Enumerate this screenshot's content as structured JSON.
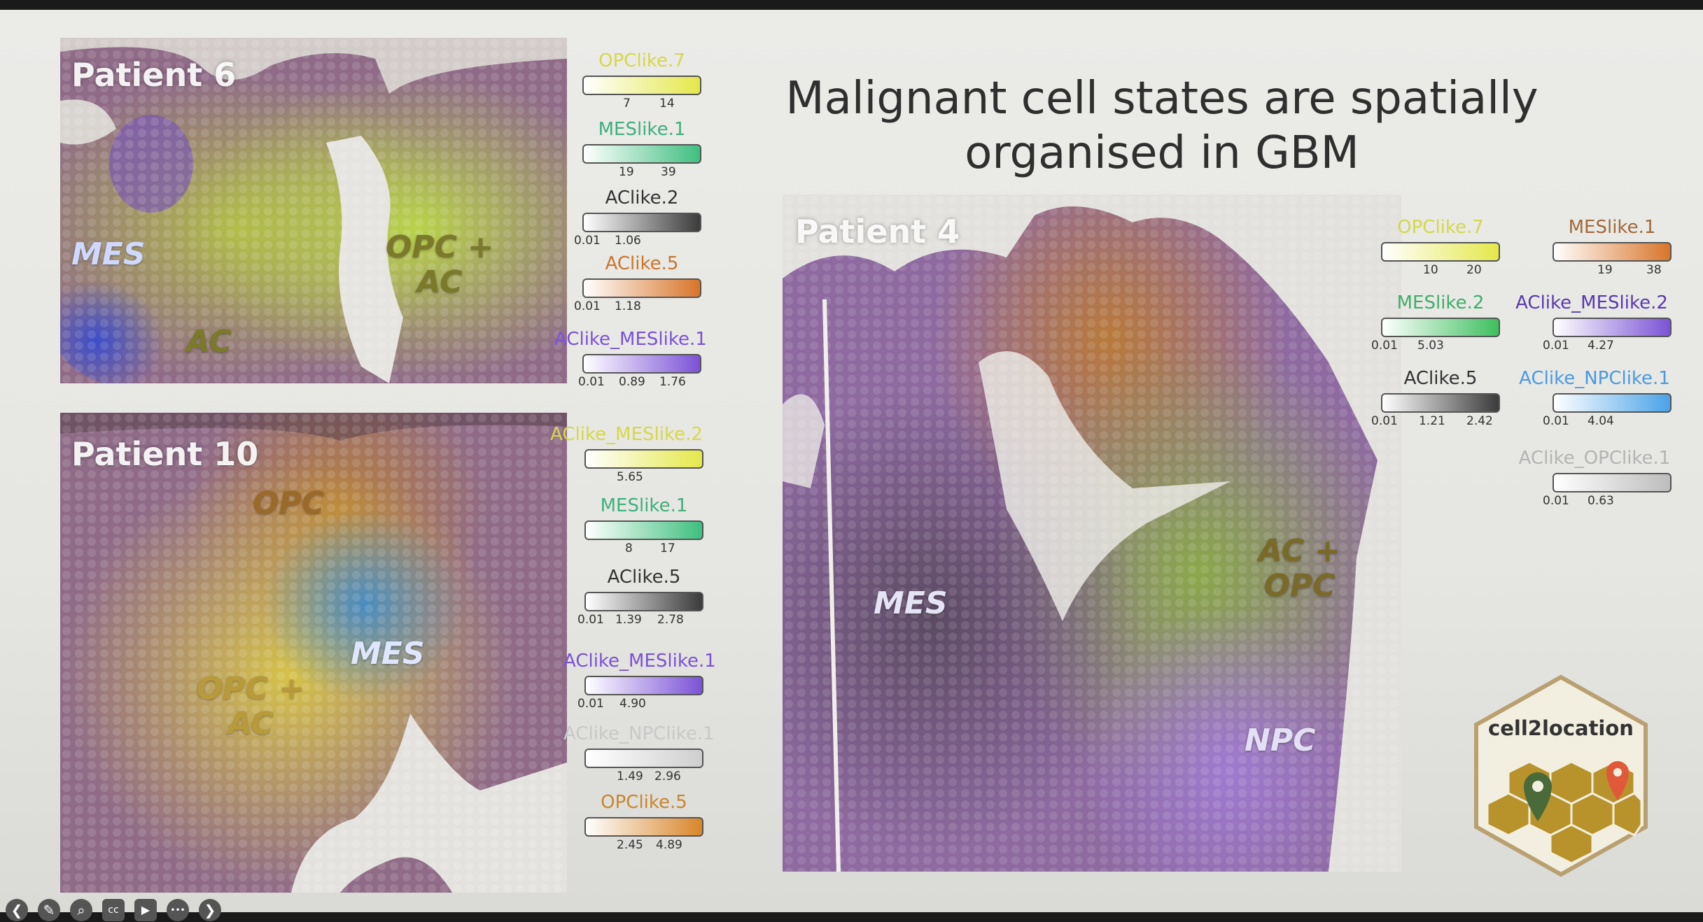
{
  "slide": {
    "title_line1": "Malignant cell states are spatially",
    "title_line2": "organised in GBM"
  },
  "panels": [
    {
      "title": "Patient 6",
      "regions": [
        "MES",
        "OPC +",
        "AC",
        "AC"
      ],
      "legends": [
        {
          "name": "OPClike.7",
          "color": "#e4e84a",
          "ticks": [
            "7",
            "14"
          ]
        },
        {
          "name": "MESlike.1",
          "color": "#3fbf7f",
          "ticks": [
            "19",
            "39"
          ]
        },
        {
          "name": "AClike.2",
          "color": "#3b3b3b",
          "ticks": [
            "0.01",
            "1.06"
          ]
        },
        {
          "name": "AClike.5",
          "color": "#d8752a",
          "ticks": [
            "0.01",
            "1.18"
          ]
        },
        {
          "name": "AClike_MESlike.1",
          "color": "#7b52d6",
          "ticks": [
            "0.01",
            "0.89",
            "1.76"
          ]
        }
      ]
    },
    {
      "title": "Patient 10",
      "regions": [
        "OPC",
        "MES",
        "OPC +",
        "AC"
      ],
      "legends": [
        {
          "name": "AClike_MESlike.2",
          "color": "#e4e84a",
          "ticks": [
            "5.65"
          ]
        },
        {
          "name": "MESlike.1",
          "color": "#3fbf7f",
          "ticks": [
            "8",
            "17"
          ]
        },
        {
          "name": "AClike.5",
          "color": "#3b3b3b",
          "ticks": [
            "0.01",
            "1.39",
            "2.78"
          ]
        },
        {
          "name": "AClike_MESlike.1",
          "color": "#7b52d6",
          "ticks": [
            "0.01",
            "4.90"
          ]
        },
        {
          "name": "AClike_NPClike.1",
          "color": "#cfcfcf",
          "ticks": [
            "1.49",
            "2.96"
          ]
        },
        {
          "name": "OPClike.5",
          "color": "#d8862a",
          "ticks": [
            "2.45",
            "4.89"
          ]
        }
      ]
    },
    {
      "title": "Patient 4",
      "regions": [
        "MES",
        "AC +",
        "OPC",
        "NPC"
      ],
      "legends": [
        {
          "name": "OPClike.7",
          "color": "#e4e84a",
          "ticks": [
            "10",
            "20"
          ]
        },
        {
          "name": "MESlike.1",
          "color": "#d8752a",
          "ticks": [
            "19",
            "38"
          ]
        },
        {
          "name": "MESlike.2",
          "color": "#3fbf5f",
          "ticks": [
            "0.01",
            "5.03"
          ]
        },
        {
          "name": "AClike_MESlike.2",
          "color": "#7b52d6",
          "ticks": [
            "0.01",
            "4.27"
          ]
        },
        {
          "name": "AClike.5",
          "color": "#3b3b3b",
          "ticks": [
            "0.01",
            "1.21",
            "2.42"
          ]
        },
        {
          "name": "AClike_NPClike.1",
          "color": "#4aa3e8",
          "ticks": [
            "0.01",
            "4.04"
          ]
        },
        {
          "name": "AClike_OPClike.1",
          "color": "#bdbdbd",
          "ticks": [
            "0.01",
            "0.63"
          ]
        }
      ]
    }
  ],
  "logo": {
    "text": "cell2location"
  },
  "toolbar": {
    "icons": [
      "back-icon",
      "pen-icon",
      "zoom-icon",
      "captions-icon",
      "camera-icon",
      "more-icon",
      "forward-icon"
    ],
    "glyphs": [
      "❮",
      "✎",
      "⌕",
      "cc",
      "▶",
      "•••",
      "❯"
    ]
  }
}
